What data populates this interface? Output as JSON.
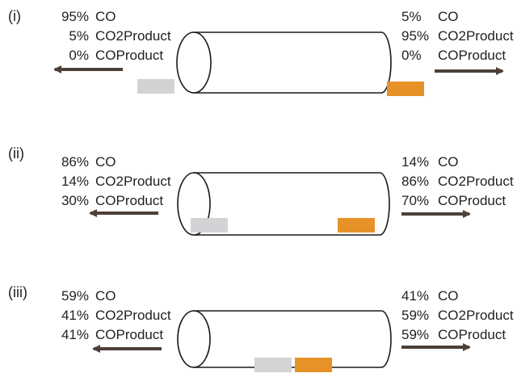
{
  "colors": {
    "arrow": "#4d4038",
    "gray_block": "#d2d3d5",
    "orange_block": "#e69228",
    "text": "#222222",
    "outline": "#1a1a1a"
  },
  "panels": [
    {
      "label": "(i)",
      "left": [
        {
          "pct": "95%",
          "species": "CO"
        },
        {
          "pct": "5%",
          "species": "CO2Product"
        },
        {
          "pct": "0%",
          "species": "COProduct"
        }
      ],
      "right": [
        {
          "pct": "5%",
          "species": "CO"
        },
        {
          "pct": "95%",
          "species": "CO2Product"
        },
        {
          "pct": "0%",
          "species": "COProduct"
        }
      ]
    },
    {
      "label": "(ii)",
      "left": [
        {
          "pct": "86%",
          "species": "CO"
        },
        {
          "pct": "14%",
          "species": "CO2Product"
        },
        {
          "pct": "30%",
          "species": "COProduct"
        }
      ],
      "right": [
        {
          "pct": "14%",
          "species": "CO"
        },
        {
          "pct": "86%",
          "species": "CO2Product"
        },
        {
          "pct": "70%",
          "species": "COProduct"
        }
      ]
    },
    {
      "label": "(iii)",
      "left": [
        {
          "pct": "59%",
          "species": "CO"
        },
        {
          "pct": "41%",
          "species": "CO2Product"
        },
        {
          "pct": "41%",
          "species": "COProduct"
        }
      ],
      "right": [
        {
          "pct": "41%",
          "species": "CO"
        },
        {
          "pct": "59%",
          "species": "CO2Product"
        },
        {
          "pct": "59%",
          "species": "COProduct"
        }
      ]
    }
  ]
}
